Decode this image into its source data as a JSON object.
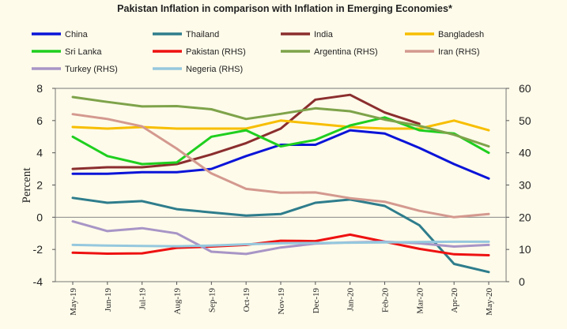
{
  "chart_data": {
    "type": "line",
    "title": "Pakistan Inflation in comparison with Inflation in Emerging Economies*",
    "ylabel": "Percent",
    "ylim_left": [
      -4,
      8
    ],
    "yticks_left": [
      "8",
      "6",
      "4",
      "2",
      "0",
      "-2",
      "-4"
    ],
    "ylim_right": [
      0,
      60
    ],
    "yticks_right": [
      "60",
      "50",
      "40",
      "30",
      "20",
      "10",
      "0"
    ],
    "categories": [
      "May-19",
      "Jun-19",
      "Jul-19",
      "Aug-19",
      "Sep-19",
      "Oct-19",
      "Nov-19",
      "Dec-19",
      "Jan-20",
      "Feb-20",
      "Mar-20",
      "Apr-20",
      "May-20"
    ],
    "series": [
      {
        "name": "China",
        "axis": "left",
        "color": "#0a14d8",
        "values": [
          2.7,
          2.7,
          2.8,
          2.8,
          3.0,
          3.8,
          4.5,
          4.5,
          5.4,
          5.2,
          4.3,
          3.3,
          2.4
        ]
      },
      {
        "name": "Thailand",
        "axis": "left",
        "color": "#2e7d8c",
        "values": [
          1.2,
          0.9,
          1.0,
          0.5,
          0.3,
          0.1,
          0.2,
          0.9,
          1.1,
          0.7,
          -0.5,
          -2.9,
          -3.4
        ]
      },
      {
        "name": "India",
        "axis": "left",
        "color": "#8b2e2e",
        "values": [
          3.0,
          3.1,
          3.1,
          3.3,
          3.9,
          4.6,
          5.5,
          7.3,
          7.6,
          6.5,
          5.8,
          null,
          null
        ]
      },
      {
        "name": "Bangladesh",
        "axis": "left",
        "color": "#f7be00",
        "values": [
          5.6,
          5.5,
          5.6,
          5.5,
          5.5,
          5.5,
          6.0,
          5.8,
          5.6,
          5.5,
          5.5,
          6.0,
          5.4
        ]
      },
      {
        "name": "Sri Lanka",
        "axis": "left",
        "color": "#1fcf1f",
        "values": [
          5.0,
          3.8,
          3.3,
          3.4,
          5.0,
          5.4,
          4.4,
          4.8,
          5.7,
          6.2,
          5.4,
          5.2,
          4.0
        ]
      },
      {
        "name": "Pakistan (RHS)",
        "axis": "right",
        "color": "#ee1111",
        "values": [
          9.0,
          8.7,
          8.8,
          10.5,
          10.9,
          11.4,
          12.7,
          12.6,
          14.6,
          12.4,
          10.2,
          8.5,
          8.2
        ]
      },
      {
        "name": "Argentina (RHS)",
        "axis": "right",
        "color": "#7ea34a",
        "values": [
          57.3,
          55.8,
          54.4,
          54.5,
          53.5,
          50.5,
          52.1,
          53.8,
          52.9,
          50.3,
          48.4,
          45.6,
          42.0
        ]
      },
      {
        "name": "Iran (RHS)",
        "axis": "right",
        "color": "#d4998f",
        "values": [
          52.0,
          50.5,
          48.2,
          41.3,
          33.6,
          28.8,
          27.6,
          27.7,
          25.9,
          24.8,
          22.0,
          20.0,
          21.0
        ]
      },
      {
        "name": "Turkey (RHS)",
        "axis": "right",
        "color": "#a895c6",
        "values": [
          18.7,
          15.7,
          16.6,
          15.0,
          9.3,
          8.6,
          10.6,
          11.8,
          12.2,
          12.4,
          11.9,
          10.9,
          11.4
        ]
      },
      {
        "name": "Negeria (RHS)",
        "axis": "right",
        "color": "#95c8de",
        "values": [
          11.4,
          11.2,
          11.1,
          11.0,
          11.2,
          11.6,
          11.9,
          12.0,
          12.1,
          12.2,
          12.3,
          12.4,
          12.4
        ]
      }
    ]
  }
}
